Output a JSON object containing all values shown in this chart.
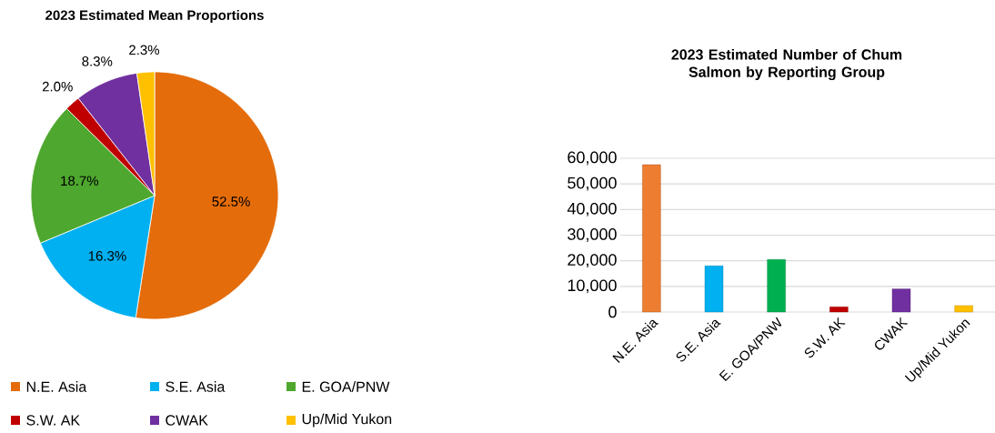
{
  "chart_data": [
    {
      "type": "pie",
      "title": "2023 Estimated Mean Proportions",
      "categories": [
        "N.E. Asia",
        "S.E. Asia",
        "E. GOA/PNW",
        "S.W. AK",
        "CWAK",
        "Up/Mid Yukon"
      ],
      "values": [
        52.5,
        16.3,
        18.7,
        2.0,
        8.3,
        2.3
      ],
      "value_labels": [
        "52.5%",
        "16.3%",
        "18.7%",
        "2.0%",
        "8.3%",
        "2.3%"
      ],
      "colors": [
        "#e46c0a",
        "#00b0f0",
        "#4ea72e",
        "#c00000",
        "#7030a0",
        "#ffc000"
      ],
      "legend": "bottom"
    },
    {
      "type": "bar",
      "title": "2023 Estimated Number of Chum Salmon by Reporting Group",
      "categories": [
        "N.E. Asia",
        "S.E. Asia",
        "E. GOA/PNW",
        "S.W. AK",
        "CWAK",
        "Up/Mid Yukon"
      ],
      "values": [
        57500,
        18000,
        20500,
        2000,
        9000,
        2500
      ],
      "colors": [
        "#ed7d31",
        "#00b0f0",
        "#00b050",
        "#c00000",
        "#7030a0",
        "#ffc000"
      ],
      "ylim": [
        0,
        60000
      ],
      "yticks": [
        {
          "value": 0,
          "label": "0"
        },
        {
          "value": 10000,
          "label": "10,000"
        },
        {
          "value": 20000,
          "label": "20,000"
        },
        {
          "value": 30000,
          "label": "30,000"
        },
        {
          "value": 40000,
          "label": "40,000"
        },
        {
          "value": 50000,
          "label": "50,000"
        },
        {
          "value": 60000,
          "label": "60,000"
        }
      ],
      "grid": "y",
      "legend": false
    }
  ]
}
